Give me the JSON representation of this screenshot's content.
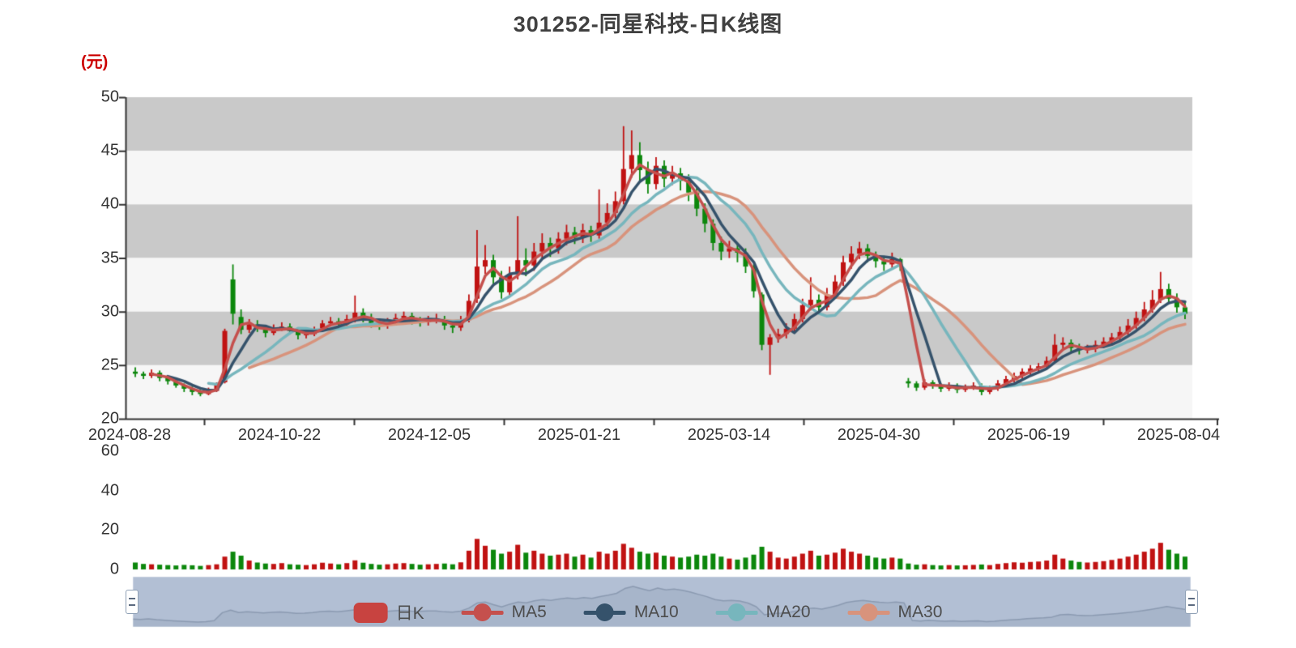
{
  "title": "301252-同星科技-日K线图",
  "y_axis": {
    "unit": "(元)",
    "ticks": [
      50,
      45,
      40,
      35,
      30,
      25,
      20
    ]
  },
  "x_axis": {
    "ticks": [
      "2024-08-28",
      "2024-10-22",
      "2024-12-05",
      "2025-01-21",
      "2025-03-14",
      "2025-04-30",
      "2025-06-19",
      "2025-08-04"
    ]
  },
  "volume_axis": {
    "ticks": [
      60,
      40,
      20,
      0
    ]
  },
  "legend": [
    {
      "label": "日K",
      "type": "candle",
      "color": "#c84340"
    },
    {
      "label": "MA5",
      "type": "line",
      "color": "#c5504d"
    },
    {
      "label": "MA10",
      "type": "line",
      "color": "#35526b"
    },
    {
      "label": "MA20",
      "type": "line",
      "color": "#77b6bd"
    },
    {
      "label": "MA30",
      "type": "line",
      "color": "#d8937c"
    }
  ],
  "colors": {
    "up": "#c01212",
    "down": "#0c870c",
    "band_dark": "#c9c9c9",
    "band_light": "#f6f6f6",
    "axis": "#333333",
    "unit_label": "#cc0000",
    "title": "#404040",
    "navigator_fill": "#b2bfd4",
    "navigator_area": "#a7b5ca",
    "navigator_line": "#8b9ab1"
  },
  "chart_data": {
    "type": "candlestick+volume",
    "title": "301252-同星科技-日K线图",
    "ylabel": "(元)",
    "price_range": [
      20,
      50
    ],
    "volume_range": [
      0,
      60
    ],
    "date_ticks": [
      "2024-08-28",
      "2024-10-22",
      "2024-12-05",
      "2025-01-21",
      "2025-03-14",
      "2025-04-30",
      "2025-06-19",
      "2025-08-04"
    ],
    "ohlc_format": [
      "open",
      "close",
      "low",
      "high"
    ],
    "candles": [
      [
        24.4,
        24.2,
        23.9,
        24.8
      ],
      [
        24.2,
        24,
        23.7,
        24.4
      ],
      [
        24,
        24.3,
        23.8,
        24.6
      ],
      [
        24.3,
        23.8,
        23.5,
        24.5
      ],
      [
        23.8,
        23.5,
        23.2,
        24
      ],
      [
        23.5,
        23.1,
        22.9,
        23.7
      ],
      [
        23.1,
        22.8,
        22.5,
        23.3
      ],
      [
        22.8,
        22.5,
        22.2,
        23
      ],
      [
        22.5,
        22.3,
        22.1,
        22.7
      ],
      [
        22.3,
        22.6,
        22.2,
        22.9
      ],
      [
        22.6,
        23.2,
        22.5,
        23.4
      ],
      [
        23.4,
        28.2,
        23.3,
        28.4
      ],
      [
        33,
        29.8,
        28.8,
        34.4
      ],
      [
        29.5,
        28.3,
        27.9,
        30.2
      ],
      [
        28.3,
        28.8,
        28,
        29.3
      ],
      [
        28.8,
        28.4,
        28.1,
        29.2
      ],
      [
        28.4,
        28,
        27.6,
        28.7
      ],
      [
        28,
        28.4,
        27.8,
        28.8
      ],
      [
        28.4,
        28.6,
        28.2,
        29
      ],
      [
        28.6,
        28.2,
        27.9,
        28.9
      ],
      [
        28.2,
        27.8,
        27.4,
        28.4
      ],
      [
        27.8,
        27.9,
        27.5,
        28.3
      ],
      [
        27.9,
        28.3,
        27.7,
        28.6
      ],
      [
        28.3,
        28.9,
        28.1,
        29.2
      ],
      [
        28.9,
        29.1,
        28.6,
        29.5
      ],
      [
        29.1,
        28.8,
        28.4,
        29.4
      ],
      [
        28.8,
        29.3,
        28.5,
        29.7
      ],
      [
        29.3,
        29.9,
        29,
        31.5
      ],
      [
        29.9,
        29.4,
        29,
        30.3
      ],
      [
        29.4,
        28.9,
        28.5,
        29.8
      ],
      [
        28.9,
        28.7,
        28.3,
        29.2
      ],
      [
        28.7,
        29,
        28.4,
        29.4
      ],
      [
        29,
        29.4,
        28.7,
        29.8
      ],
      [
        29.4,
        29.6,
        29.1,
        30
      ],
      [
        29.6,
        29.2,
        28.8,
        29.9
      ],
      [
        29.2,
        29,
        28.6,
        29.5
      ],
      [
        29,
        29.3,
        28.7,
        29.6
      ],
      [
        29.3,
        29.3,
        28.9,
        29.8
      ],
      [
        29.3,
        28.7,
        28.3,
        29.6
      ],
      [
        28.7,
        28.5,
        28,
        29
      ],
      [
        28.5,
        29.2,
        28.2,
        29.6
      ],
      [
        29.2,
        31,
        29,
        31.6
      ],
      [
        31.2,
        34.2,
        30.8,
        37.6
      ],
      [
        34.2,
        34.8,
        33.5,
        36.2
      ],
      [
        34.8,
        33.2,
        32.5,
        35.3
      ],
      [
        33.2,
        31.8,
        31.2,
        33.8
      ],
      [
        31.8,
        33.5,
        31.4,
        34.2
      ],
      [
        33.5,
        34.8,
        33,
        38.9
      ],
      [
        34.8,
        34.3,
        33.3,
        35.9
      ],
      [
        34.3,
        35.6,
        33.8,
        36.4
      ],
      [
        35.6,
        36.4,
        35,
        37.3
      ],
      [
        36.4,
        35.9,
        35.1,
        36.9
      ],
      [
        35.9,
        36.8,
        35.4,
        37.4
      ],
      [
        36.8,
        37.4,
        36.2,
        38.1
      ],
      [
        37.4,
        36.9,
        36.3,
        37.9
      ],
      [
        36.9,
        37.6,
        36.4,
        38.2
      ],
      [
        37.6,
        37.1,
        36.5,
        38
      ],
      [
        37.1,
        38.3,
        36.8,
        41.4
      ],
      [
        38.3,
        39.2,
        37.8,
        40.1
      ],
      [
        39.2,
        40.3,
        38.7,
        41.2
      ],
      [
        40.3,
        43.3,
        40,
        47.3
      ],
      [
        43.3,
        44.6,
        42.5,
        46.9
      ],
      [
        44.6,
        43.2,
        42,
        45.8
      ],
      [
        43.2,
        41.9,
        41,
        44
      ],
      [
        41.9,
        43.6,
        41.4,
        44.4
      ],
      [
        43.6,
        42.4,
        41.6,
        44.1
      ],
      [
        42.4,
        42.9,
        41.8,
        43.6
      ],
      [
        42.9,
        42.2,
        41.3,
        43.4
      ],
      [
        42.2,
        41.1,
        40.3,
        42.8
      ],
      [
        41.1,
        39.6,
        38.9,
        41.6
      ],
      [
        39.6,
        38.2,
        37.4,
        40.1
      ],
      [
        38.2,
        36.4,
        35.7,
        38.6
      ],
      [
        36.4,
        35.6,
        34.8,
        37
      ],
      [
        35.6,
        35.9,
        35,
        36.6
      ],
      [
        35.9,
        35.5,
        34.6,
        36.4
      ],
      [
        35.5,
        34.2,
        33.6,
        35.9
      ],
      [
        34.2,
        31.9,
        31.3,
        34.4
      ],
      [
        31.6,
        26.9,
        26.4,
        31.8
      ],
      [
        26.9,
        27.6,
        24.1,
        27.9
      ],
      [
        27.6,
        27.9,
        27.1,
        28.4
      ],
      [
        27.9,
        28.4,
        27.5,
        28.9
      ],
      [
        28.4,
        29.3,
        28.1,
        29.8
      ],
      [
        29.3,
        30.6,
        29,
        31.2
      ],
      [
        30.6,
        31.1,
        30.1,
        33.2
      ],
      [
        31.1,
        30.4,
        29.8,
        31.6
      ],
      [
        30.4,
        31.6,
        30.1,
        32.2
      ],
      [
        31.6,
        32.8,
        31.2,
        33.4
      ],
      [
        32.8,
        34.6,
        32.4,
        35.2
      ],
      [
        34.6,
        35.4,
        34,
        36.1
      ],
      [
        35.4,
        35.9,
        34.9,
        36.5
      ],
      [
        35.9,
        35.2,
        34.6,
        36.3
      ],
      [
        35.2,
        34.7,
        34.1,
        35.6
      ],
      [
        34.7,
        34.4,
        33.8,
        35.2
      ],
      [
        34.4,
        34.9,
        34,
        35.5
      ],
      [
        34.9,
        34.3,
        33.8,
        35
      ],
      [
        23.5,
        23.3,
        22.9,
        23.8
      ],
      [
        23.3,
        22.9,
        22.6,
        23.5
      ],
      [
        22.9,
        23.4,
        22.7,
        23.7
      ],
      [
        23.4,
        23.1,
        22.8,
        23.6
      ],
      [
        23.1,
        22.8,
        22.5,
        23.3
      ],
      [
        22.8,
        23.1,
        22.6,
        23.4
      ],
      [
        23.1,
        22.7,
        22.4,
        23.3
      ],
      [
        22.7,
        22.9,
        22.5,
        23.2
      ],
      [
        22.9,
        23.1,
        22.7,
        23.4
      ],
      [
        23.1,
        22.5,
        22.2,
        23.3
      ],
      [
        22.5,
        22.8,
        22.3,
        23.1
      ],
      [
        22.8,
        23.3,
        22.6,
        23.6
      ],
      [
        23.3,
        23.7,
        23.1,
        24
      ],
      [
        23.7,
        24,
        23.4,
        24.3
      ],
      [
        24,
        24.4,
        23.7,
        24.7
      ],
      [
        24.4,
        24.7,
        24.1,
        25
      ],
      [
        24.7,
        24.9,
        24.3,
        25.2
      ],
      [
        24.9,
        25.4,
        24.6,
        25.8
      ],
      [
        25.4,
        26.9,
        25.2,
        27.9
      ],
      [
        26.9,
        27.1,
        26.4,
        27.6
      ],
      [
        27.1,
        26.6,
        26.1,
        27.4
      ],
      [
        26.6,
        26.4,
        26,
        27
      ],
      [
        26.4,
        26.5,
        26.1,
        26.9
      ],
      [
        26.5,
        26.9,
        26.2,
        27.3
      ],
      [
        26.9,
        27.2,
        26.6,
        27.6
      ],
      [
        27.2,
        27.6,
        26.9,
        28
      ],
      [
        27.6,
        28.1,
        27.3,
        28.6
      ],
      [
        28.1,
        28.7,
        27.8,
        29.3
      ],
      [
        28.7,
        29.4,
        28.4,
        30
      ],
      [
        29.4,
        30.2,
        29.1,
        30.9
      ],
      [
        30.2,
        31.1,
        29.9,
        32
      ],
      [
        31.1,
        32.1,
        30.8,
        33.7
      ],
      [
        32.1,
        31.2,
        30.7,
        32.6
      ],
      [
        31.2,
        30.4,
        29.9,
        31.7
      ],
      [
        30.4,
        29.8,
        29.3,
        30.8
      ]
    ],
    "volumes": [
      3.5,
      2.8,
      2.6,
      2.4,
      2.2,
      2,
      2.3,
      2.1,
      1.8,
      2.2,
      2.6,
      6.5,
      9,
      7,
      4.5,
      3.5,
      3,
      2.8,
      3.2,
      2.6,
      2.4,
      2.2,
      2.6,
      3.4,
      3,
      2.6,
      3.2,
      4.6,
      3.4,
      2.8,
      2.4,
      2.6,
      3,
      3.2,
      2.8,
      2.4,
      2.6,
      2.8,
      3,
      2.6,
      3.6,
      9.5,
      15.5,
      12,
      10,
      8,
      9,
      12.5,
      8.5,
      9.5,
      8,
      7,
      7.5,
      8,
      6.5,
      7.5,
      6,
      9,
      8,
      9.5,
      13,
      11,
      9,
      8,
      8.5,
      7,
      6.5,
      6,
      6.5,
      7.5,
      7,
      8,
      6.5,
      5.5,
      5,
      6,
      7.5,
      11.5,
      9,
      6,
      5.5,
      6.5,
      8,
      9.5,
      7,
      7.5,
      8.5,
      10.5,
      9,
      8,
      7,
      6,
      5.5,
      6,
      5.5,
      3,
      2.4,
      2.6,
      2.2,
      2,
      2.2,
      2,
      2.1,
      2.3,
      2.5,
      2.2,
      2.8,
      3.2,
      3.6,
      3.4,
      3.8,
      4,
      4.5,
      7.5,
      5.5,
      4.5,
      3.8,
      3.5,
      3.8,
      4.2,
      4.8,
      5.5,
      6.5,
      7.5,
      9,
      10.5,
      13.5,
      10,
      8,
      6.5
    ],
    "ma_series": [
      {
        "name": "MA5",
        "color": "#c5504d",
        "window": 3
      },
      {
        "name": "MA10",
        "color": "#35526b",
        "window": 5
      },
      {
        "name": "MA20",
        "color": "#77b6bd",
        "window": 10
      },
      {
        "name": "MA30",
        "color": "#d8937c",
        "window": 15
      }
    ],
    "legend_position": "bottom",
    "grid": "horizontal-bands"
  }
}
